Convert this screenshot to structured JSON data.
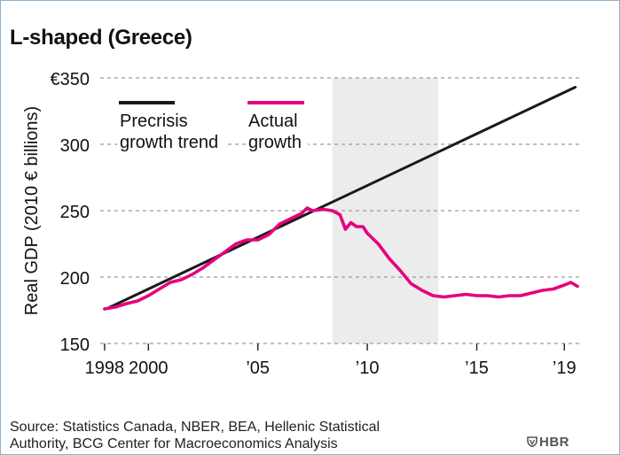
{
  "chart_data": {
    "type": "line",
    "title": "L-shaped (Greece)",
    "ylabel": "Real GDP (2010 € billions)",
    "ylim": [
      150,
      350
    ],
    "xlim": [
      1997.8,
      2019.8
    ],
    "grid": "horizontal dashed",
    "y_ticks": [
      {
        "value": 150,
        "label": "150"
      },
      {
        "value": 200,
        "label": "200"
      },
      {
        "value": 250,
        "label": "250"
      },
      {
        "value": 300,
        "label": "300"
      },
      {
        "value": 350,
        "label": "€350"
      }
    ],
    "x_ticks": [
      {
        "value": 1998,
        "label": "1998"
      },
      {
        "value": 2000,
        "label": "2000"
      },
      {
        "value": 2005,
        "label": "’05"
      },
      {
        "value": 2010,
        "label": "’10"
      },
      {
        "value": 2015,
        "label": "’15"
      },
      {
        "value": 2019,
        "label": "’19"
      }
    ],
    "shaded_period": {
      "start": 2008.4,
      "end": 2013.25
    },
    "legend": [
      {
        "label_line1": "Precrisis",
        "label_line2": "growth trend",
        "color": "#1a1a1a"
      },
      {
        "label_line1": "Actual",
        "label_line2": "growth",
        "color": "#e6007e"
      }
    ],
    "series": [
      {
        "name": "Precrisis growth trend",
        "color": "#1a1a1a",
        "points": [
          [
            1998.2,
            177
          ],
          [
            2019.5,
            343
          ]
        ]
      },
      {
        "name": "Actual growth",
        "color": "#e6007e",
        "points": [
          [
            1998.0,
            176
          ],
          [
            1998.5,
            177.5
          ],
          [
            1999.0,
            180
          ],
          [
            1999.5,
            182
          ],
          [
            2000.0,
            186
          ],
          [
            2000.5,
            191
          ],
          [
            2001.0,
            196
          ],
          [
            2001.5,
            198
          ],
          [
            2002.0,
            202
          ],
          [
            2002.5,
            207
          ],
          [
            2003.0,
            213
          ],
          [
            2003.5,
            219
          ],
          [
            2004.0,
            225
          ],
          [
            2004.5,
            228
          ],
          [
            2005.0,
            228
          ],
          [
            2005.5,
            232
          ],
          [
            2006.0,
            240
          ],
          [
            2006.5,
            244
          ],
          [
            2007.0,
            248
          ],
          [
            2007.25,
            252
          ],
          [
            2007.5,
            250
          ],
          [
            2008.0,
            251
          ],
          [
            2008.4,
            250
          ],
          [
            2008.75,
            247
          ],
          [
            2009.0,
            236
          ],
          [
            2009.25,
            241
          ],
          [
            2009.5,
            238
          ],
          [
            2009.8,
            238
          ],
          [
            2010.0,
            233
          ],
          [
            2010.5,
            225
          ],
          [
            2011.0,
            214
          ],
          [
            2011.5,
            205
          ],
          [
            2012.0,
            195
          ],
          [
            2012.5,
            190
          ],
          [
            2013.0,
            186
          ],
          [
            2013.5,
            185
          ],
          [
            2014.0,
            186
          ],
          [
            2014.5,
            187
          ],
          [
            2015.0,
            186
          ],
          [
            2015.5,
            186
          ],
          [
            2016.0,
            185
          ],
          [
            2016.5,
            186
          ],
          [
            2017.0,
            186
          ],
          [
            2017.5,
            188
          ],
          [
            2018.0,
            190
          ],
          [
            2018.5,
            191
          ],
          [
            2019.0,
            194
          ],
          [
            2019.3,
            196
          ],
          [
            2019.6,
            193
          ]
        ]
      }
    ],
    "source_line1": "Source: Statistics Canada, NBER, BEA, Hellenic Statistical",
    "source_line2": "Authority, BCG Center for Macroeconomics Analysis",
    "brand": "HBR"
  }
}
